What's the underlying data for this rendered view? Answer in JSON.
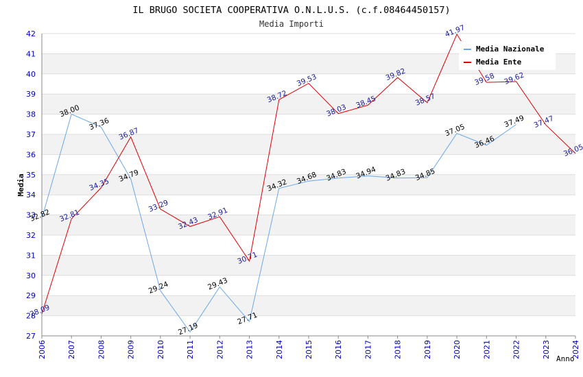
{
  "chart_data": {
    "type": "line",
    "title": "IL BRUGO SOCIETA COOPERATIVA O.N.L.U.S. (c.f.08464450157)",
    "subtitle": "Media Importi",
    "xlabel": "Anno",
    "ylabel": "Media",
    "ylim": [
      27,
      42
    ],
    "y_ticks": [
      "27",
      "28",
      "29",
      "30",
      "31",
      "32",
      "33",
      "34",
      "35",
      "36",
      "37",
      "38",
      "39",
      "40",
      "41",
      "42"
    ],
    "categories": [
      "2006",
      "2007",
      "2008",
      "2009",
      "2010",
      "2011",
      "2012",
      "2013",
      "2014",
      "2015",
      "2016",
      "2017",
      "2018",
      "2019",
      "2020",
      "2021",
      "2022",
      "2023",
      "2024"
    ],
    "series": [
      {
        "name": "Media Nazionale",
        "color": "#6aa8e8",
        "label_color": "#000000",
        "values": [
          32.82,
          38.0,
          37.36,
          34.79,
          29.24,
          27.19,
          29.43,
          27.71,
          34.32,
          34.68,
          34.83,
          34.94,
          34.83,
          34.85,
          37.05,
          36.46,
          37.49,
          null,
          null
        ],
        "labels": [
          "32.82",
          "38.00",
          "37.36",
          "34.79",
          "29.24",
          "27.19",
          "29.43",
          "27.71",
          "34.32",
          "34.68",
          "34.83",
          "34.94",
          "34.83",
          "34.85",
          "37.05",
          "36.46",
          "37.49",
          "",
          ""
        ]
      },
      {
        "name": "Media Ente",
        "color": "#dd0000",
        "label_color": "#1a1a99",
        "values": [
          28.09,
          32.81,
          34.35,
          36.87,
          33.29,
          32.43,
          32.91,
          30.71,
          38.72,
          39.53,
          38.03,
          38.45,
          39.82,
          38.57,
          41.97,
          39.58,
          39.62,
          37.47,
          36.05
        ],
        "labels": [
          "28.09",
          "32.81",
          "34.35",
          "36.87",
          "33.29",
          "32.43",
          "32.91",
          "30.71",
          "38.72",
          "39.53",
          "38.03",
          "38.45",
          "39.82",
          "38.57",
          "41.97",
          "39.58",
          "39.62",
          "37.47",
          "36.05"
        ]
      }
    ],
    "legend_position": "top-right",
    "colors": {
      "band": "#f2f2f2",
      "grid": "#dddddd",
      "axis": "#888888",
      "tick_text": "#0000bb",
      "title_text": "#000000",
      "subtitle_text": "#333333"
    }
  }
}
